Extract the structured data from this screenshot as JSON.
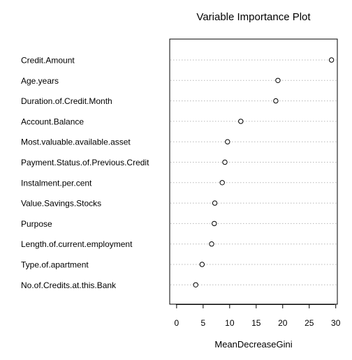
{
  "chart_data": {
    "type": "scatter",
    "subtype": "dotchart",
    "title": "Variable Importance Plot",
    "xlabel": "MeanDecreaseGini",
    "ylabel": "",
    "xlim": [
      -1.3,
      30.3
    ],
    "xticks": [
      0,
      5,
      10,
      15,
      20,
      25,
      30
    ],
    "grid": "dotted horizontal lines per variable",
    "marker": "open circle",
    "categories": [
      "Credit.Amount",
      "Age.years",
      "Duration.of.Credit.Month",
      "Account.Balance",
      "Most.valuable.available.asset",
      "Payment.Status.of.Previous.Credit",
      "Instalment.per.cent",
      "Value.Savings.Stocks",
      "Purpose",
      "Length.of.current.employment",
      "Type.of.apartment",
      "No.of.Credits.at.this.Bank"
    ],
    "values": [
      29.2,
      19.1,
      18.7,
      12.1,
      9.6,
      9.1,
      8.6,
      7.2,
      7.1,
      6.6,
      4.8,
      3.6
    ]
  }
}
